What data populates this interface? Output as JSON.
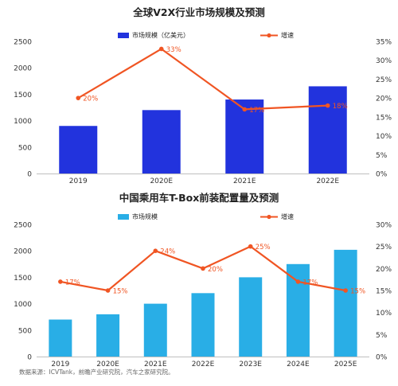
{
  "chart_data": [
    {
      "type": "bar",
      "title": "全球V2X行业市场规模及预测",
      "categories": [
        "2019",
        "2020E",
        "2021E",
        "2022E"
      ],
      "series": [
        {
          "name": "市场规模（亿美元）",
          "type": "bar",
          "axis": "left",
          "values": [
            900,
            1200,
            1400,
            1650
          ],
          "color": "#2233dd"
        },
        {
          "name": "增速",
          "type": "line",
          "axis": "right",
          "values": [
            20,
            33,
            17,
            18
          ],
          "labels": [
            "20%",
            "33%",
            "17%",
            "18%"
          ],
          "color": "#f05523"
        }
      ],
      "ylim": [
        0,
        2500
      ],
      "y_ticks": [
        "0",
        "500",
        "1000",
        "1500",
        "2000",
        "2500"
      ],
      "y2lim": [
        0,
        35
      ],
      "y2_ticks": [
        "0%",
        "5%",
        "10%",
        "15%",
        "20%",
        "25%",
        "30%",
        "35%"
      ],
      "legend": "top-center"
    },
    {
      "type": "bar",
      "title": "中国乘用车T-Box前装配置量及预测",
      "categories": [
        "2019",
        "2020E",
        "2021E",
        "2022E",
        "2023E",
        "2024E",
        "2025E"
      ],
      "series": [
        {
          "name": "市场规模",
          "type": "bar",
          "axis": "left",
          "values": [
            700,
            800,
            1000,
            1200,
            1500,
            1750,
            2020
          ],
          "color": "#29aee6"
        },
        {
          "name": "增速",
          "type": "line",
          "axis": "right",
          "values": [
            17,
            15,
            24,
            20,
            25,
            17,
            15
          ],
          "labels": [
            "17%",
            "15%",
            "24%",
            "20%",
            "25%",
            "17%",
            "15%"
          ],
          "color": "#f05523"
        }
      ],
      "ylim": [
        0,
        2500
      ],
      "y_ticks": [
        "0",
        "500",
        "1000",
        "1500",
        "2000",
        "2500"
      ],
      "y2lim": [
        0,
        30
      ],
      "y2_ticks": [
        "0%",
        "5%",
        "10%",
        "15%",
        "20%",
        "25%",
        "30%"
      ],
      "legend": "top-center"
    }
  ],
  "source": "数据来源：ICVTank，前瞻产业研究院，汽车之家研究院。"
}
